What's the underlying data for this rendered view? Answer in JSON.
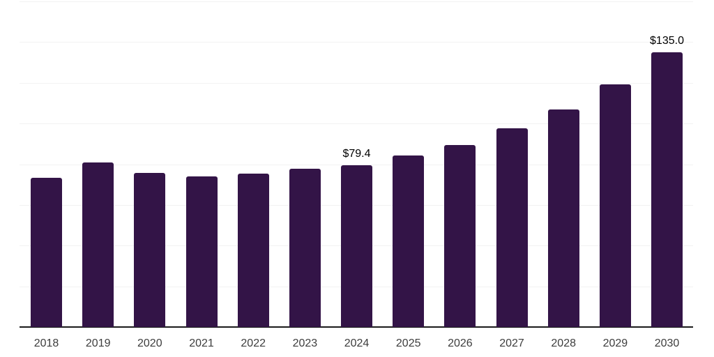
{
  "chart_data": {
    "type": "bar",
    "title": "",
    "categories": [
      "2018",
      "2019",
      "2020",
      "2021",
      "2022",
      "2023",
      "2024",
      "2025",
      "2026",
      "2027",
      "2028",
      "2029",
      "2030"
    ],
    "values": [
      73.5,
      81.0,
      75.6,
      74.0,
      75.5,
      77.8,
      79.4,
      84.2,
      89.5,
      97.5,
      106.8,
      119.2,
      135.0
    ],
    "point_labels": [
      "",
      "",
      "",
      "",
      "",
      "",
      "$79.4",
      "",
      "",
      "",
      "",
      "",
      "$135.0"
    ],
    "xlabel": "",
    "ylabel": "",
    "ylim": [
      0,
      160
    ],
    "grid_step": 20,
    "grid": "horizontal",
    "legend": "none",
    "y_axis_ticks_visible": false,
    "colors": {
      "bar": "#331447",
      "gridline": "#f2f2f2",
      "axis_line": "#1a1a1a",
      "tick_label": "#3d3d3d",
      "value_label": "#000000",
      "background": "#ffffff"
    }
  }
}
